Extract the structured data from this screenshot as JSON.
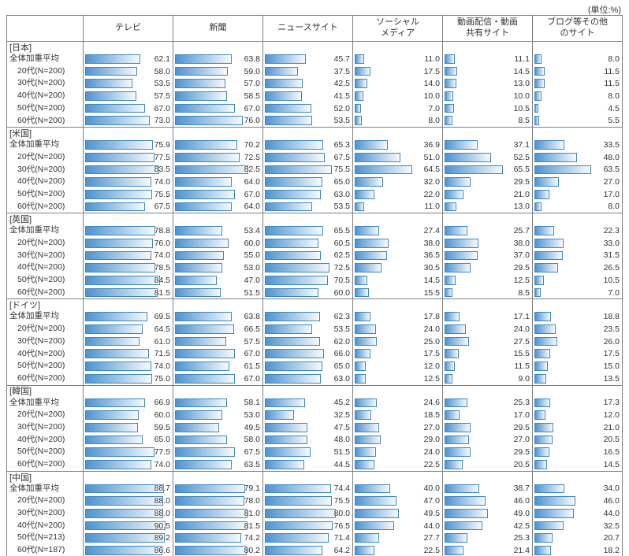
{
  "unit_label": "(単位:%)",
  "colors": {
    "grid_line": "#7f7f7f",
    "bar_border": "#3d87c0",
    "bar_fill_start": "#4f93cf",
    "bar_fill_end": "#f6fafd"
  },
  "chart_data": {
    "type": "bar",
    "orientation": "horizontal",
    "value_range": [
      0,
      100
    ],
    "unit": "%",
    "columns": [
      "テレビ",
      "新聞",
      "ニュースサイト",
      "ソーシャル\nメディア",
      "動画配信・動画\n共有サイト",
      "ブログ等その他\nのサイト"
    ],
    "groups": [
      {
        "country": "[日本]",
        "rows": [
          {
            "label": "全体加重平均",
            "indent": false,
            "values": [
              62.1,
              63.8,
              45.7,
              11.0,
              11.1,
              8.0
            ]
          },
          {
            "label": "20代(N=200)",
            "indent": true,
            "values": [
              58.0,
              59.0,
              37.5,
              17.5,
              14.5,
              11.5
            ]
          },
          {
            "label": "30代(N=200)",
            "indent": true,
            "values": [
              53.5,
              57.0,
              42.5,
              14.0,
              13.0,
              11.5
            ]
          },
          {
            "label": "40代(N=200)",
            "indent": true,
            "values": [
              57.5,
              58.5,
              41.5,
              10.0,
              10.0,
              8.0
            ]
          },
          {
            "label": "50代(N=200)",
            "indent": true,
            "values": [
              67.0,
              67.0,
              52.0,
              7.0,
              10.5,
              4.5
            ]
          },
          {
            "label": "60代(N=200)",
            "indent": true,
            "values": [
              73.0,
              76.0,
              53.5,
              8.0,
              8.5,
              5.5
            ]
          }
        ]
      },
      {
        "country": "[米国]",
        "rows": [
          {
            "label": "全体加重平均",
            "indent": false,
            "values": [
              75.9,
              70.2,
              65.3,
              36.9,
              37.1,
              33.5
            ]
          },
          {
            "label": "20代(N=200)",
            "indent": true,
            "values": [
              77.5,
              72.5,
              67.5,
              51.0,
              52.5,
              48.0
            ]
          },
          {
            "label": "30代(N=200)",
            "indent": true,
            "values": [
              83.5,
              82.5,
              75.5,
              64.5,
              65.5,
              63.5
            ]
          },
          {
            "label": "40代(N=200)",
            "indent": true,
            "values": [
              74.0,
              64.0,
              65.0,
              32.0,
              29.5,
              27.0
            ]
          },
          {
            "label": "50代(N=200)",
            "indent": true,
            "values": [
              75.5,
              67.0,
              63.0,
              22.0,
              21.0,
              17.0
            ]
          },
          {
            "label": "60代(N=200)",
            "indent": true,
            "values": [
              67.5,
              64.0,
              53.5,
              11.0,
              13.0,
              8.0
            ]
          }
        ]
      },
      {
        "country": "[英国]",
        "rows": [
          {
            "label": "全体加重平均",
            "indent": false,
            "values": [
              78.8,
              53.4,
              65.5,
              27.4,
              25.7,
              22.3
            ]
          },
          {
            "label": "20代(N=200)",
            "indent": true,
            "values": [
              76.0,
              60.0,
              60.5,
              38.0,
              38.0,
              33.0
            ]
          },
          {
            "label": "30代(N=200)",
            "indent": true,
            "values": [
              74.0,
              55.0,
              62.5,
              36.5,
              37.0,
              31.5
            ]
          },
          {
            "label": "40代(N=200)",
            "indent": true,
            "values": [
              78.5,
              53.0,
              72.5,
              30.5,
              29.5,
              26.5
            ]
          },
          {
            "label": "50代(N=200)",
            "indent": true,
            "values": [
              84.5,
              47.0,
              70.5,
              14.5,
              12.5,
              10.5
            ]
          },
          {
            "label": "60代(N=200)",
            "indent": true,
            "values": [
              81.5,
              51.5,
              60.0,
              15.5,
              8.5,
              7.0
            ]
          }
        ]
      },
      {
        "country": "[ドイツ]",
        "rows": [
          {
            "label": "全体加重平均",
            "indent": false,
            "values": [
              69.5,
              63.8,
              62.3,
              17.8,
              17.1,
              18.8
            ]
          },
          {
            "label": "20代(N=200)",
            "indent": true,
            "values": [
              64.5,
              66.5,
              53.5,
              24.0,
              24.0,
              23.5
            ]
          },
          {
            "label": "30代(N=200)",
            "indent": true,
            "values": [
              61.0,
              57.5,
              62.0,
              25.0,
              27.5,
              26.0
            ]
          },
          {
            "label": "40代(N=200)",
            "indent": true,
            "values": [
              71.5,
              67.0,
              66.0,
              17.5,
              15.5,
              17.5
            ]
          },
          {
            "label": "50代(N=200)",
            "indent": true,
            "values": [
              74.0,
              61.5,
              65.0,
              12.0,
              11.5,
              15.0
            ]
          },
          {
            "label": "60代(N=200)",
            "indent": true,
            "values": [
              75.0,
              67.0,
              63.0,
              12.5,
              9.0,
              13.5
            ]
          }
        ]
      },
      {
        "country": "[韓国]",
        "rows": [
          {
            "label": "全体加重平均",
            "indent": false,
            "values": [
              66.9,
              58.1,
              45.2,
              24.6,
              25.3,
              17.3
            ]
          },
          {
            "label": "20代(N=200)",
            "indent": true,
            "values": [
              60.0,
              53.0,
              32.5,
              18.5,
              17.0,
              12.0
            ]
          },
          {
            "label": "30代(N=200)",
            "indent": true,
            "values": [
              59.5,
              49.5,
              47.5,
              27.0,
              29.5,
              21.0
            ]
          },
          {
            "label": "40代(N=200)",
            "indent": true,
            "values": [
              65.0,
              58.0,
              48.0,
              29.0,
              27.0,
              20.5
            ]
          },
          {
            "label": "50代(N=200)",
            "indent": true,
            "values": [
              77.5,
              67.5,
              51.5,
              24.0,
              29.5,
              16.5
            ]
          },
          {
            "label": "60代(N=200)",
            "indent": true,
            "values": [
              74.0,
              63.5,
              44.5,
              22.5,
              20.5,
              14.5
            ]
          }
        ]
      },
      {
        "country": "[中国]",
        "rows": [
          {
            "label": "全体加重平均",
            "indent": false,
            "values": [
              88.7,
              79.1,
              74.4,
              40.0,
              38.7,
              34.0
            ]
          },
          {
            "label": "20代(N=200)",
            "indent": true,
            "values": [
              88.0,
              78.0,
              75.5,
              47.0,
              46.0,
              46.0
            ]
          },
          {
            "label": "30代(N=200)",
            "indent": true,
            "values": [
              88.0,
              81.0,
              80.0,
              49.5,
              49.0,
              44.0
            ]
          },
          {
            "label": "40代(N=200)",
            "indent": true,
            "values": [
              90.5,
              81.5,
              76.5,
              44.0,
              42.5,
              32.5
            ]
          },
          {
            "label": "50代(N=213)",
            "indent": true,
            "values": [
              89.2,
              74.2,
              71.4,
              27.7,
              25.3,
              20.7
            ]
          },
          {
            "label": "60代(N=187)",
            "indent": true,
            "values": [
              86.6,
              80.2,
              64.2,
              22.5,
              21.4,
              18.2
            ]
          }
        ]
      }
    ]
  }
}
